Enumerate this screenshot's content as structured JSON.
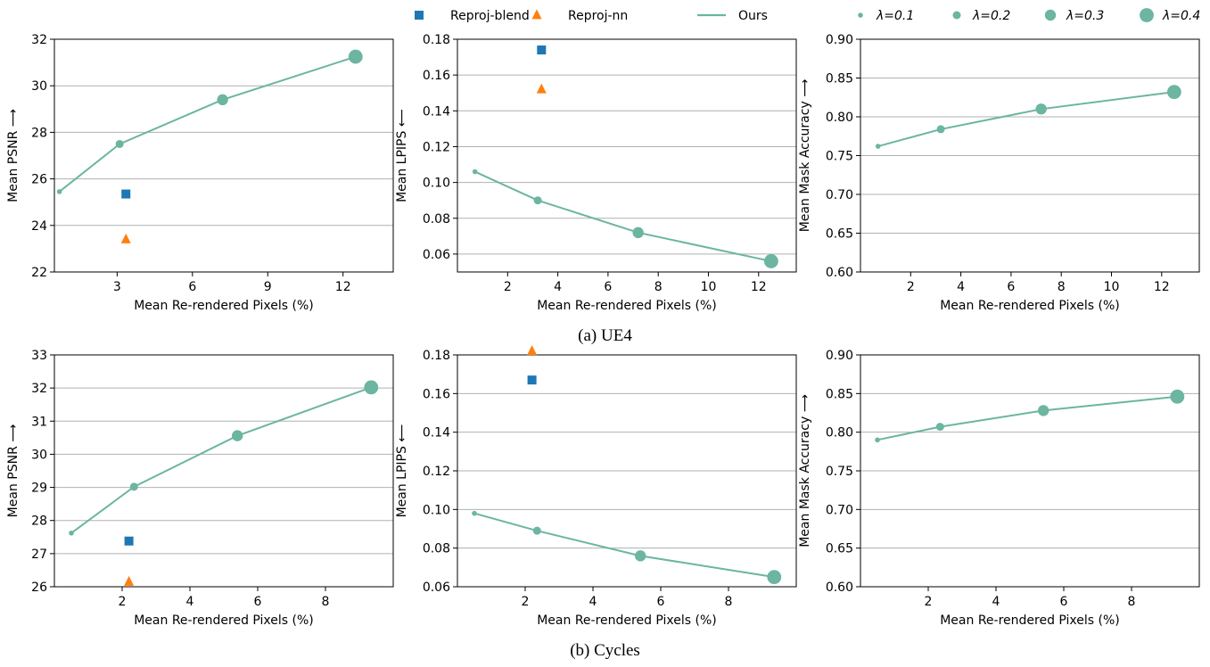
{
  "colors": {
    "ours": "#6bb5a1",
    "reproj_blend": "#1f77b4",
    "reproj_nn": "#ff7f0e",
    "grid": "#b0b0b0"
  },
  "legend": {
    "items": [
      {
        "marker": "square",
        "label": "Reproj-blend"
      },
      {
        "marker": "triangle",
        "label": "Reproj-nn"
      },
      {
        "marker": "line",
        "label": "Ours"
      },
      {
        "marker": "circle",
        "size": 1,
        "label": "λ=0.1"
      },
      {
        "marker": "circle",
        "size": 2,
        "label": "λ=0.2"
      },
      {
        "marker": "circle",
        "size": 3,
        "label": "λ=0.3"
      },
      {
        "marker": "circle",
        "size": 4,
        "label": "λ=0.4"
      }
    ]
  },
  "captions": {
    "a": "(a) UE4",
    "b": "(b) Cycles"
  },
  "chart_data": [
    {
      "type": "line",
      "group": "(a) UE4",
      "xlabel": "Mean Re-rendered Pixels (%)",
      "ylabel": "Mean PSNR ⟶",
      "xlim": [
        0.5,
        14
      ],
      "xticks": [
        3,
        6,
        9,
        12
      ],
      "ylim": [
        22,
        32
      ],
      "yticks": [
        22,
        24,
        26,
        28,
        30,
        32
      ],
      "grid": "y",
      "series": [
        {
          "name": "Ours",
          "x": [
            0.7,
            3.1,
            7.2,
            12.5
          ],
          "y": [
            25.45,
            27.5,
            29.4,
            31.25
          ],
          "sizes": [
            1,
            2,
            3,
            4
          ]
        }
      ],
      "points": [
        {
          "name": "Reproj-blend",
          "marker": "square",
          "x": 3.35,
          "y": 25.35
        },
        {
          "name": "Reproj-nn",
          "marker": "triangle",
          "x": 3.35,
          "y": 23.4
        }
      ]
    },
    {
      "type": "line",
      "group": "(a) UE4",
      "xlabel": "Mean Re-rendered Pixels (%)",
      "ylabel": "Mean LPIPS ⟵",
      "xlim": [
        0.0,
        13.5
      ],
      "xticks": [
        2,
        4,
        6,
        8,
        10,
        12
      ],
      "ylim": [
        0.05,
        0.18
      ],
      "yticks": [
        0.06,
        0.08,
        0.1,
        0.12,
        0.14,
        0.16,
        0.18
      ],
      "grid": "y",
      "series": [
        {
          "name": "Ours",
          "x": [
            0.7,
            3.2,
            7.2,
            12.5
          ],
          "y": [
            0.106,
            0.09,
            0.072,
            0.056
          ],
          "sizes": [
            1,
            2,
            3,
            4
          ]
        }
      ],
      "points": [
        {
          "name": "Reproj-blend",
          "marker": "square",
          "x": 3.35,
          "y": 0.174
        },
        {
          "name": "Reproj-nn",
          "marker": "triangle",
          "x": 3.35,
          "y": 0.152
        }
      ]
    },
    {
      "type": "line",
      "group": "(a) UE4",
      "xlabel": "Mean Re-rendered Pixels (%)",
      "ylabel": "Mean Mask Accuracy ⟶",
      "xlim": [
        0.0,
        13.5
      ],
      "xticks": [
        2,
        4,
        6,
        8,
        10,
        12
      ],
      "ylim": [
        0.6,
        0.9
      ],
      "yticks": [
        0.6,
        0.65,
        0.7,
        0.75,
        0.8,
        0.85,
        0.9
      ],
      "grid": "y",
      "series": [
        {
          "name": "Ours",
          "x": [
            0.7,
            3.2,
            7.2,
            12.5
          ],
          "y": [
            0.762,
            0.784,
            0.81,
            0.832
          ],
          "sizes": [
            1,
            2,
            3,
            4
          ]
        }
      ],
      "points": []
    },
    {
      "type": "line",
      "group": "(b) Cycles",
      "xlabel": "Mean Re-rendered Pixels (%)",
      "ylabel": "Mean PSNR ⟶",
      "xlim": [
        0.0,
        10.0
      ],
      "xticks": [
        2,
        4,
        6,
        8
      ],
      "ylim": [
        26,
        33
      ],
      "yticks": [
        26,
        27,
        28,
        29,
        30,
        31,
        32,
        33
      ],
      "grid": "y",
      "series": [
        {
          "name": "Ours",
          "x": [
            0.5,
            2.35,
            5.4,
            9.35
          ],
          "y": [
            27.62,
            29.02,
            30.56,
            32.02
          ],
          "sizes": [
            1,
            2,
            3,
            4
          ]
        }
      ],
      "points": [
        {
          "name": "Reproj-blend",
          "marker": "square",
          "x": 2.2,
          "y": 27.38
        },
        {
          "name": "Reproj-nn",
          "marker": "triangle",
          "x": 2.2,
          "y": 26.15
        }
      ]
    },
    {
      "type": "line",
      "group": "(b) Cycles",
      "xlabel": "Mean Re-rendered Pixels (%)",
      "ylabel": "Mean LPIPS ⟵",
      "xlim": [
        0.0,
        10.0
      ],
      "xticks": [
        2,
        4,
        6,
        8
      ],
      "ylim": [
        0.06,
        0.18
      ],
      "yticks": [
        0.06,
        0.08,
        0.1,
        0.12,
        0.14,
        0.16,
        0.18
      ],
      "grid": "y",
      "series": [
        {
          "name": "Ours",
          "x": [
            0.5,
            2.35,
            5.4,
            9.35
          ],
          "y": [
            0.098,
            0.089,
            0.076,
            0.065
          ],
          "sizes": [
            1,
            2,
            3,
            4
          ]
        }
      ],
      "points": [
        {
          "name": "Reproj-blend",
          "marker": "square",
          "x": 2.2,
          "y": 0.167
        },
        {
          "name": "Reproj-nn",
          "marker": "triangle",
          "x": 2.2,
          "y": 0.182
        }
      ]
    },
    {
      "type": "line",
      "group": "(b) Cycles",
      "xlabel": "Mean Re-rendered Pixels (%)",
      "ylabel": "Mean Mask Accuracy ⟶",
      "xlim": [
        0.0,
        10.0
      ],
      "xticks": [
        2,
        4,
        6,
        8
      ],
      "ylim": [
        0.6,
        0.9
      ],
      "yticks": [
        0.6,
        0.65,
        0.7,
        0.75,
        0.8,
        0.85,
        0.9
      ],
      "grid": "y",
      "series": [
        {
          "name": "Ours",
          "x": [
            0.5,
            2.35,
            5.4,
            9.35
          ],
          "y": [
            0.79,
            0.807,
            0.828,
            0.846
          ],
          "sizes": [
            1,
            2,
            3,
            4
          ]
        }
      ],
      "points": []
    }
  ]
}
